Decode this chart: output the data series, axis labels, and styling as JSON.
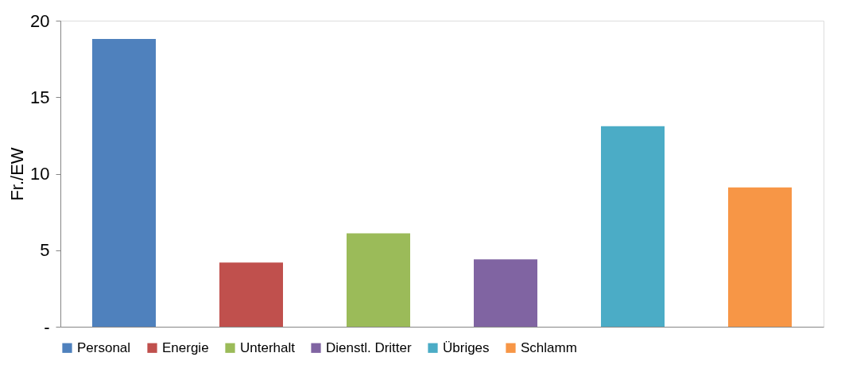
{
  "chart_data": {
    "type": "bar",
    "ylabel": "Fr./EW",
    "categories": [
      null
    ],
    "series": [
      {
        "name": "Personal",
        "color": "#4f81bd",
        "values": [
          18.8
        ]
      },
      {
        "name": "Energie",
        "color": "#c0504d",
        "values": [
          4.2
        ]
      },
      {
        "name": "Unterhalt",
        "color": "#9bbb59",
        "values": [
          6.1
        ]
      },
      {
        "name": "Dienstl. Dritter",
        "color": "#8064a2",
        "values": [
          4.4
        ]
      },
      {
        "name": "Übriges",
        "color": "#4bacc6",
        "values": [
          13.1
        ]
      },
      {
        "name": "Schlamm",
        "color": "#f79646",
        "values": [
          9.1
        ]
      }
    ],
    "ylim": [
      0,
      20
    ],
    "yticks": [
      {
        "value": 0,
        "label": "-"
      },
      5,
      10,
      15,
      20
    ],
    "grid": false,
    "legend": "bottom",
    "tick_labels": "y"
  }
}
